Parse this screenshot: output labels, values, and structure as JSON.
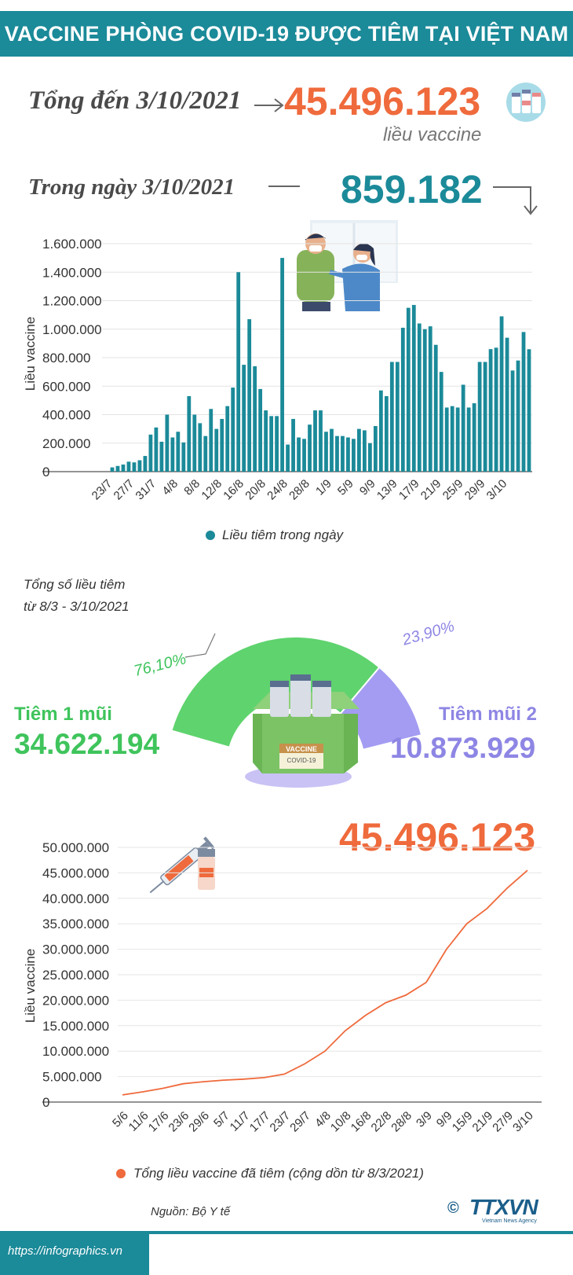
{
  "title": "VACCINE PHÒNG COVID-19 ĐƯỢC TIÊM TẠI VIỆT NAM",
  "header": {
    "total_label": "Tổng đến 3/10/2021",
    "total_value": "45.496.123",
    "total_unit": "liều vaccine",
    "day_label": "Trong ngày 3/10/2021",
    "day_value": "859.182"
  },
  "colors": {
    "teal": "#1b8a99",
    "orange": "#ef6a3c",
    "green": "#5fd36e",
    "purple": "#a39cf2",
    "green_text": "#3fc45c",
    "purple_text": "#8e86e4"
  },
  "chart_data": [
    {
      "type": "bar",
      "ylabel": "Liều vaccine",
      "ylim": [
        0,
        1600000
      ],
      "yticks": [
        "1.600.000",
        "1.400.000",
        "1.200.000",
        "1.000.000",
        "800.000",
        "600.000",
        "400.000",
        "200.000",
        "0"
      ],
      "xtick_labels": [
        "23/7",
        "27/7",
        "31/7",
        "4/8",
        "8/8",
        "12/8",
        "16/8",
        "20/8",
        "24/8",
        "28/8",
        "1/9",
        "5/9",
        "9/9",
        "13/9",
        "17/9",
        "21/9",
        "25/9",
        "29/9",
        "3/10"
      ],
      "legend": "Liều tiêm trong ngày",
      "values": [
        30000,
        40000,
        50000,
        70000,
        65000,
        80000,
        110000,
        260000,
        310000,
        210000,
        400000,
        240000,
        280000,
        205000,
        530000,
        400000,
        340000,
        250000,
        440000,
        300000,
        370000,
        460000,
        590000,
        1400000,
        750000,
        1070000,
        740000,
        580000,
        430000,
        390000,
        390000,
        1500000,
        190000,
        370000,
        240000,
        230000,
        330000,
        430000,
        430000,
        280000,
        300000,
        250000,
        250000,
        240000,
        230000,
        300000,
        290000,
        200000,
        320000,
        570000,
        530000,
        770000,
        770000,
        1010000,
        1150000,
        1170000,
        1040000,
        1000000,
        1020000,
        890000,
        700000,
        450000,
        460000,
        450000,
        610000,
        450000,
        480000,
        770000,
        770000,
        860000,
        870000,
        1090000,
        940000,
        710000,
        780000,
        980000,
        859182
      ]
    },
    {
      "type": "pie",
      "title": "Tổng số liều tiêm\ntừ 8/3 - 3/10/2021",
      "slices": [
        {
          "name": "Tiêm 1 mũi",
          "value": 34622194,
          "pct": "76,10%",
          "value_text": "34.622.194"
        },
        {
          "name": "Tiêm mũi 2",
          "value": 10873929,
          "pct": "23,90%",
          "value_text": "10.873.929"
        }
      ],
      "box_labels": [
        "VACCINE",
        "COVID-19"
      ]
    },
    {
      "type": "line",
      "ylabel": "Liều vaccine",
      "ylim": [
        0,
        50000000
      ],
      "yticks": [
        "50.000.000",
        "45.000.000",
        "40.000.000",
        "35.000.000",
        "30.000.000",
        "25.000.000",
        "20.000.000",
        "15.000.000",
        "10.000.000",
        "5.000.000",
        "0"
      ],
      "xtick_labels": [
        "5/6",
        "11/6",
        "17/6",
        "23/6",
        "29/6",
        "5/7",
        "11/7",
        "17/7",
        "23/7",
        "29/7",
        "4/8",
        "10/8",
        "16/8",
        "22/8",
        "28/8",
        "3/9",
        "9/9",
        "15/9",
        "21/9",
        "27/9",
        "3/10"
      ],
      "final_value": "45.496.123",
      "legend": "Tổng liều vaccine đã tiêm (cộng dồn từ 8/3/2021)",
      "values": [
        1400000,
        2000000,
        2700000,
        3600000,
        4000000,
        4300000,
        4500000,
        4800000,
        5500000,
        7500000,
        10000000,
        14000000,
        17000000,
        19500000,
        21000000,
        23500000,
        30000000,
        35000000,
        38000000,
        42000000,
        45496123
      ]
    }
  ],
  "footer": {
    "source": "Nguồn: Bộ Y tế",
    "url": "https://infographics.vn",
    "brand": "TTXVN",
    "brand_sub": "Vietnam News Agency",
    "copyright": "©"
  }
}
